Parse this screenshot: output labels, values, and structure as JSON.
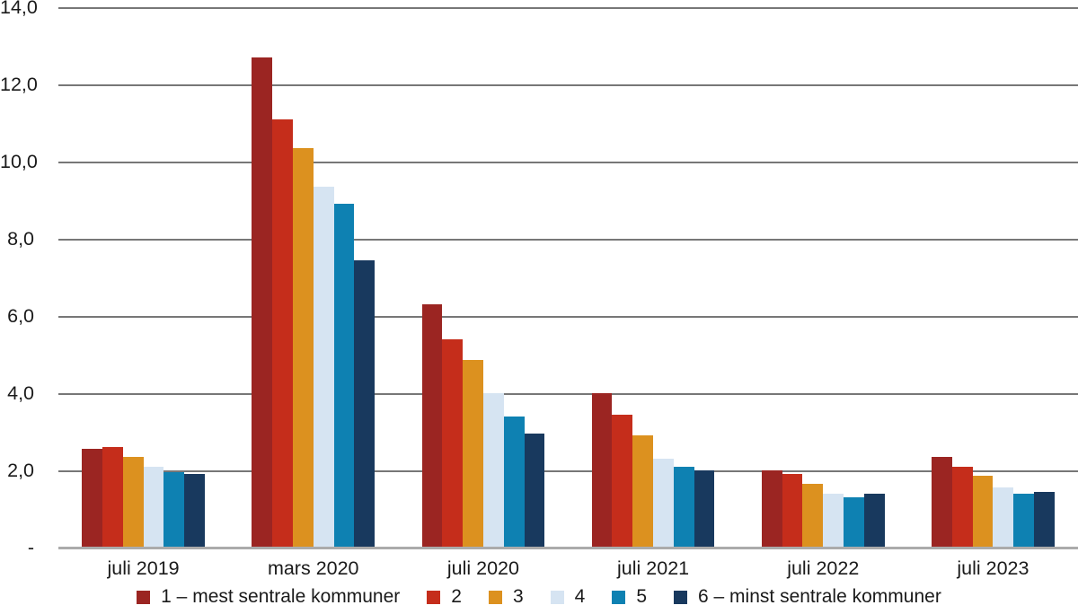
{
  "chart_data": {
    "type": "bar",
    "title": "",
    "xlabel": "",
    "ylabel": "",
    "categories": [
      "juli 2019",
      "mars 2020",
      "juli 2020",
      "juli 2021",
      "juli 2022",
      "juli 2023"
    ],
    "series": [
      {
        "name": "1 – mest sentrale kommuner",
        "color": "#9b2522",
        "values": [
          2.55,
          12.7,
          6.3,
          4.0,
          2.0,
          2.35
        ]
      },
      {
        "name": "2",
        "color": "#c52d1b",
        "values": [
          2.6,
          11.1,
          5.4,
          3.45,
          1.9,
          2.1
        ]
      },
      {
        "name": "3",
        "color": "#dc911f",
        "values": [
          2.35,
          10.35,
          4.85,
          2.9,
          1.65,
          1.85
        ]
      },
      {
        "name": "4",
        "color": "#d6e4f2",
        "values": [
          2.1,
          9.35,
          4.0,
          2.3,
          1.4,
          1.55
        ]
      },
      {
        "name": "5",
        "color": "#0e81b2",
        "values": [
          1.95,
          8.9,
          3.4,
          2.1,
          1.3,
          1.4
        ]
      },
      {
        "name": "6 – minst sentrale kommuner",
        "color": "#18395e",
        "values": [
          1.9,
          7.45,
          2.95,
          2.0,
          1.4,
          1.45
        ]
      }
    ],
    "ylim": [
      0,
      14
    ],
    "y_ticks": [
      {
        "value": 0,
        "label": "-"
      },
      {
        "value": 2,
        "label": "2,0"
      },
      {
        "value": 4,
        "label": "4,0"
      },
      {
        "value": 6,
        "label": "6,0"
      },
      {
        "value": 8,
        "label": "8,0"
      },
      {
        "value": 10,
        "label": "10,0"
      },
      {
        "value": 12,
        "label": "12,0"
      },
      {
        "value": 14,
        "label": "14,0"
      }
    ],
    "grid": true,
    "legend_position": "bottom",
    "decimal_separator": ","
  }
}
